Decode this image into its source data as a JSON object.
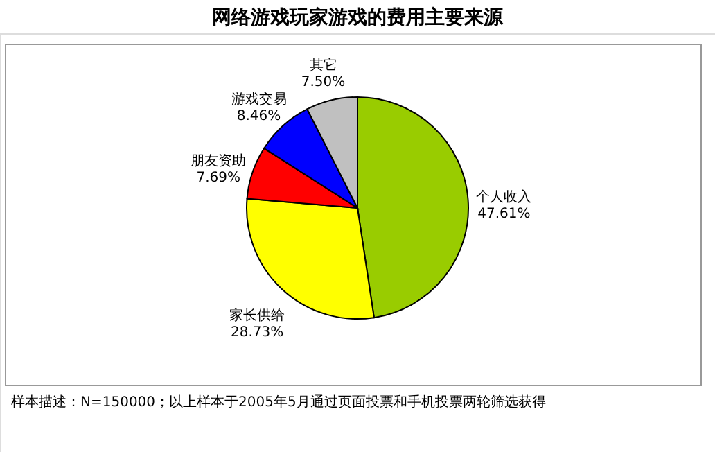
{
  "chart_data": {
    "type": "pie",
    "title": "网络游戏玩家游戏的费用主要来源",
    "categories": [
      "个人收入",
      "家长供给",
      "朋友资助",
      "游戏交易",
      "其它"
    ],
    "values": [
      47.61,
      28.73,
      7.69,
      8.46,
      7.5
    ],
    "colors": [
      "#99cc00",
      "#ffff00",
      "#ff0000",
      "#0000ff",
      "#c0c0c0"
    ],
    "value_labels": [
      "47.61%",
      "28.73%",
      "7.69%",
      "8.46%",
      "7.50%"
    ],
    "legend": false,
    "annotations": [
      "样本描述：N=150000；以上样本于2005年5月通过页面投票和手机投票两轮筛选获得"
    ]
  }
}
